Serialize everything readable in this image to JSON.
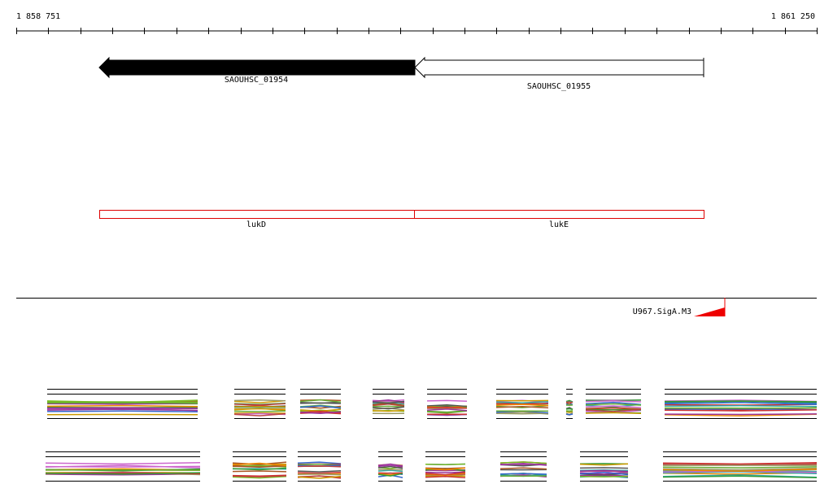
{
  "ruler": {
    "start": "1 858 751",
    "end": "1 861 250"
  },
  "genes": [
    {
      "label": "SAOUHSC_01954"
    },
    {
      "label": "SAOUHSC_01955"
    }
  ],
  "features": [
    {
      "label": "lukD"
    },
    {
      "label": "lukE"
    }
  ],
  "motifs": [
    {
      "label": "U967.SigA.M3"
    }
  ]
}
